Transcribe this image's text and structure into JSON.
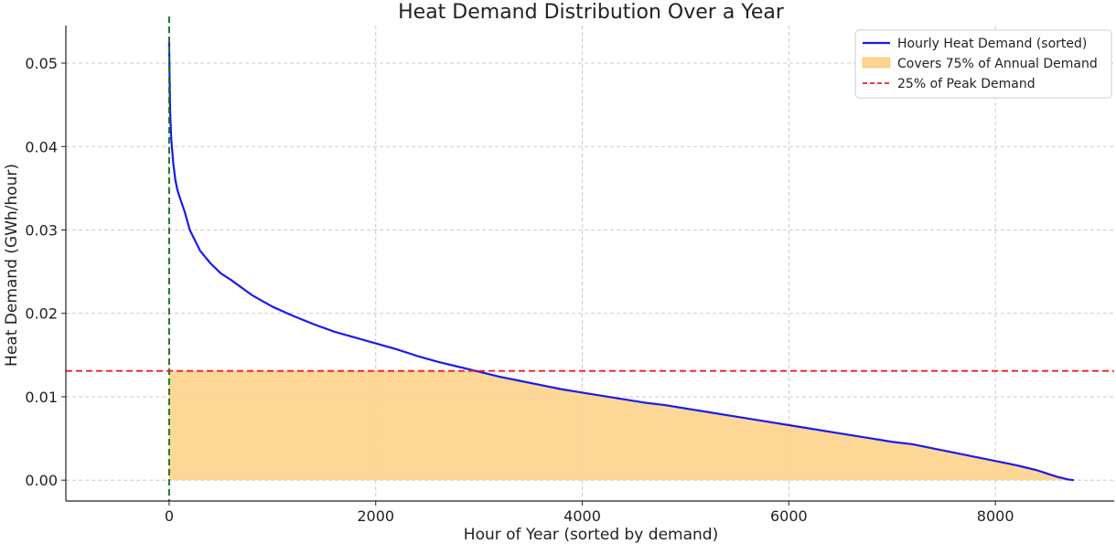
{
  "chart_data": {
    "type": "area",
    "title": "Heat Demand Distribution Over a Year",
    "xlabel": "Hour of Year (sorted by demand)",
    "ylabel": "Heat Demand (GWh/hour)",
    "xlim": [
      -1000,
      9150
    ],
    "ylim": [
      -0.0025,
      0.0545
    ],
    "x_ticks": [
      0,
      2000,
      4000,
      6000,
      8000
    ],
    "x_tick_labels": [
      "0",
      "2000",
      "4000",
      "6000",
      "8000"
    ],
    "y_ticks": [
      0.0,
      0.01,
      0.02,
      0.03,
      0.04,
      0.05
    ],
    "y_tick_labels": [
      "0.00",
      "0.01",
      "0.02",
      "0.03",
      "0.04",
      "0.05"
    ],
    "grid": true,
    "legend_position": "top-right",
    "series": [
      {
        "name": "Hourly Heat Demand (sorted)",
        "kind": "line",
        "color": "#1a1aee",
        "x": [
          0,
          5,
          10,
          20,
          40,
          60,
          80,
          100,
          150,
          200,
          300,
          400,
          500,
          600,
          800,
          1000,
          1200,
          1400,
          1600,
          1800,
          2000,
          2200,
          2400,
          2600,
          2800,
          3000,
          3200,
          3400,
          3600,
          3800,
          4000,
          4200,
          4400,
          4600,
          4800,
          5000,
          5200,
          5400,
          5600,
          5800,
          6000,
          6200,
          6400,
          6600,
          6800,
          7000,
          7200,
          7400,
          7600,
          7800,
          8000,
          8200,
          8400,
          8500,
          8600,
          8700,
          8760
        ],
        "y": [
          0.0525,
          0.048,
          0.044,
          0.041,
          0.038,
          0.036,
          0.0348,
          0.034,
          0.0322,
          0.03,
          0.0275,
          0.026,
          0.0248,
          0.024,
          0.0222,
          0.0208,
          0.0197,
          0.0187,
          0.0178,
          0.0171,
          0.0164,
          0.0157,
          0.0149,
          0.0142,
          0.0136,
          0.013,
          0.0124,
          0.0119,
          0.0114,
          0.0109,
          0.0105,
          0.0101,
          0.0097,
          0.0093,
          0.009,
          0.0086,
          0.0082,
          0.0078,
          0.0074,
          0.007,
          0.0066,
          0.0062,
          0.0058,
          0.0054,
          0.005,
          0.0046,
          0.0043,
          0.0038,
          0.0033,
          0.0028,
          0.0023,
          0.0018,
          0.0012,
          0.0008,
          0.0004,
          0.0001,
          0.0
        ]
      },
      {
        "name": "Covers 75% of Annual Demand",
        "kind": "area",
        "color": "#fdd590",
        "x_range": [
          0,
          8760
        ],
        "cap_y": 0.0131
      },
      {
        "name": "25% of Peak Demand",
        "kind": "hline",
        "color": "#ee2020",
        "y": 0.0131
      },
      {
        "kind": "vline",
        "color": "#1a7a1a",
        "x": 0
      }
    ]
  }
}
